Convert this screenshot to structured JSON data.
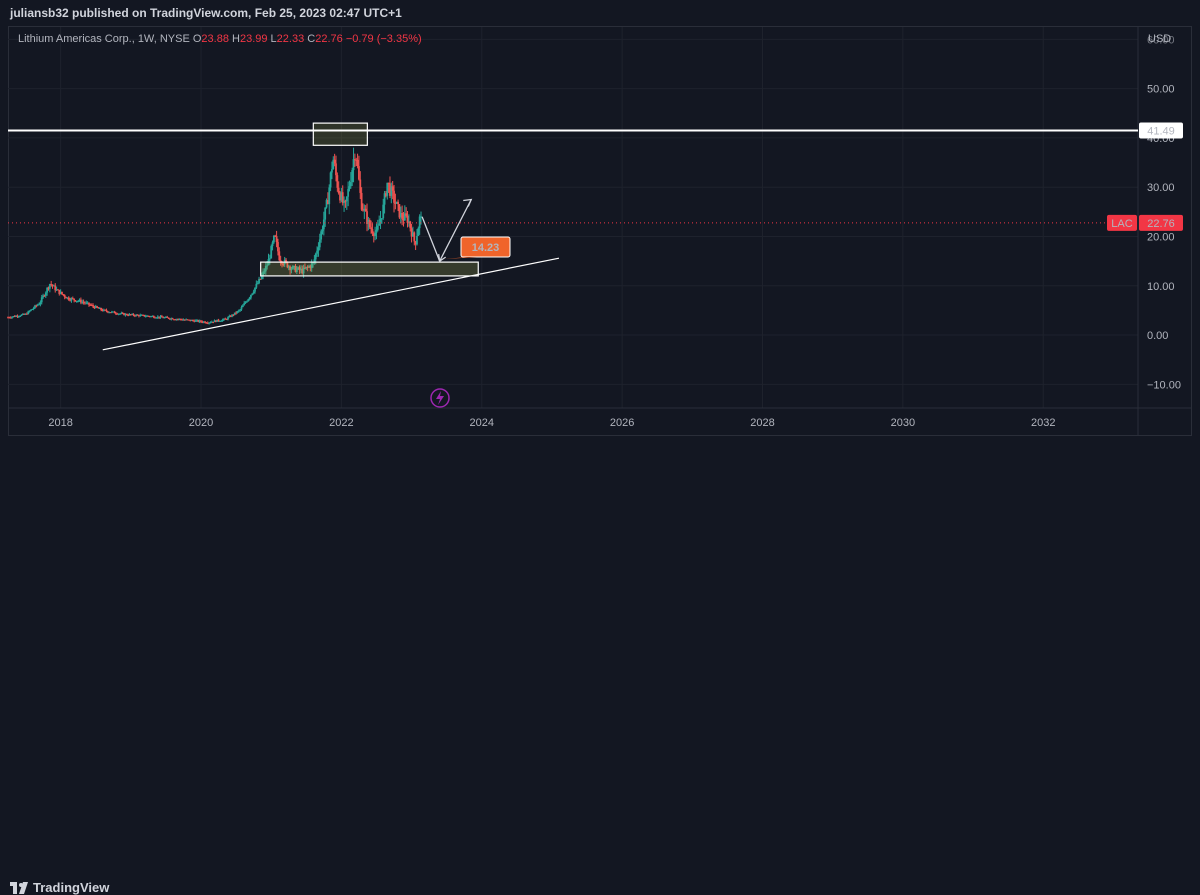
{
  "header": {
    "published_text": "juliansb32 published on TradingView.com, Feb 25, 2023 02:47 UTC+1"
  },
  "legend": {
    "symbol_text": "Lithium Americas Corp., 1W, NYSE",
    "open_label": "O",
    "open_value": "23.88",
    "high_label": "H",
    "high_value": "23.99",
    "low_label": "L",
    "low_value": "22.33",
    "close_label": "C",
    "close_value": "22.76",
    "change_value": "−0.79 (−3.35%)"
  },
  "axis": {
    "currency": "USD"
  },
  "footer": {
    "brand": "TradingView"
  },
  "colors": {
    "background": "#131722",
    "up": "#26a69a",
    "down": "#ef5350",
    "accent_orange": "#f0642a",
    "price_badge": "#f23645",
    "lightning": "#9c27b0"
  },
  "chart_data": {
    "type": "candlestick",
    "symbol": "LAC",
    "interval": "1W",
    "exchange": "NYSE",
    "x_tick_labels": [
      "2018",
      "2020",
      "2022",
      "2024",
      "2026",
      "2028",
      "2030",
      "2032"
    ],
    "x_tick_years": [
      2018,
      2020,
      2022,
      2024,
      2026,
      2028,
      2030,
      2032
    ],
    "x_range": [
      2017.25,
      2033.35
    ],
    "y_tick_labels": [
      "60.00",
      "50.00",
      "40.00",
      "30.00",
      "20.00",
      "10.00",
      "0.00",
      "−10.00"
    ],
    "y_tick_values": [
      60,
      50,
      40,
      30,
      20,
      10,
      0,
      -10
    ],
    "y_range": [
      -14.8,
      62.5
    ],
    "last_price": 22.76,
    "last_price_label": "22.76",
    "last_price_ticker": "LAC",
    "horizontal_line": {
      "value": 41.49,
      "label": "41.49"
    },
    "price_path": [
      [
        2017.25,
        3.6
      ],
      [
        2017.5,
        4.2
      ],
      [
        2017.7,
        6.5
      ],
      [
        2017.85,
        10.5
      ],
      [
        2017.95,
        9.0
      ],
      [
        2018.1,
        7.5
      ],
      [
        2018.3,
        6.8
      ],
      [
        2018.6,
        5.0
      ],
      [
        2018.9,
        4.2
      ],
      [
        2019.3,
        3.8
      ],
      [
        2019.7,
        3.2
      ],
      [
        2020.1,
        2.6
      ],
      [
        2020.35,
        3.2
      ],
      [
        2020.55,
        5.0
      ],
      [
        2020.7,
        8.0
      ],
      [
        2020.85,
        11.5
      ],
      [
        2020.95,
        14.5
      ],
      [
        2021.05,
        20.0
      ],
      [
        2021.12,
        15.5
      ],
      [
        2021.3,
        13.5
      ],
      [
        2021.45,
        13.0
      ],
      [
        2021.6,
        14.5
      ],
      [
        2021.7,
        20.0
      ],
      [
        2021.8,
        27.0
      ],
      [
        2021.88,
        36.0
      ],
      [
        2021.95,
        30.0
      ],
      [
        2022.05,
        25.5
      ],
      [
        2022.12,
        31.0
      ],
      [
        2022.2,
        38.0
      ],
      [
        2022.28,
        27.0
      ],
      [
        2022.4,
        22.0
      ],
      [
        2022.5,
        20.5
      ],
      [
        2022.6,
        26.0
      ],
      [
        2022.65,
        31.0
      ],
      [
        2022.75,
        27.5
      ],
      [
        2022.85,
        24.0
      ],
      [
        2022.95,
        23.5
      ],
      [
        2023.05,
        18.5
      ],
      [
        2023.12,
        24.0
      ],
      [
        2023.15,
        22.8
      ]
    ],
    "annotations": {
      "top_box": {
        "x": [
          2021.6,
          2022.37
        ],
        "y": [
          38.5,
          43.0
        ]
      },
      "support_box": {
        "x": [
          2020.85,
          2023.95
        ],
        "y": [
          12.0,
          14.8
        ]
      },
      "trendline": {
        "start": [
          2018.6,
          -3.0
        ],
        "end": [
          2025.1,
          15.6
        ]
      },
      "projection_down": {
        "start": [
          2023.15,
          24.0
        ],
        "end": [
          2023.4,
          15.0
        ]
      },
      "projection_up": {
        "start": [
          2023.4,
          15.0
        ],
        "end": [
          2023.85,
          27.5
        ]
      },
      "target_label": {
        "text": "14.23",
        "value": 14.23
      }
    }
  }
}
